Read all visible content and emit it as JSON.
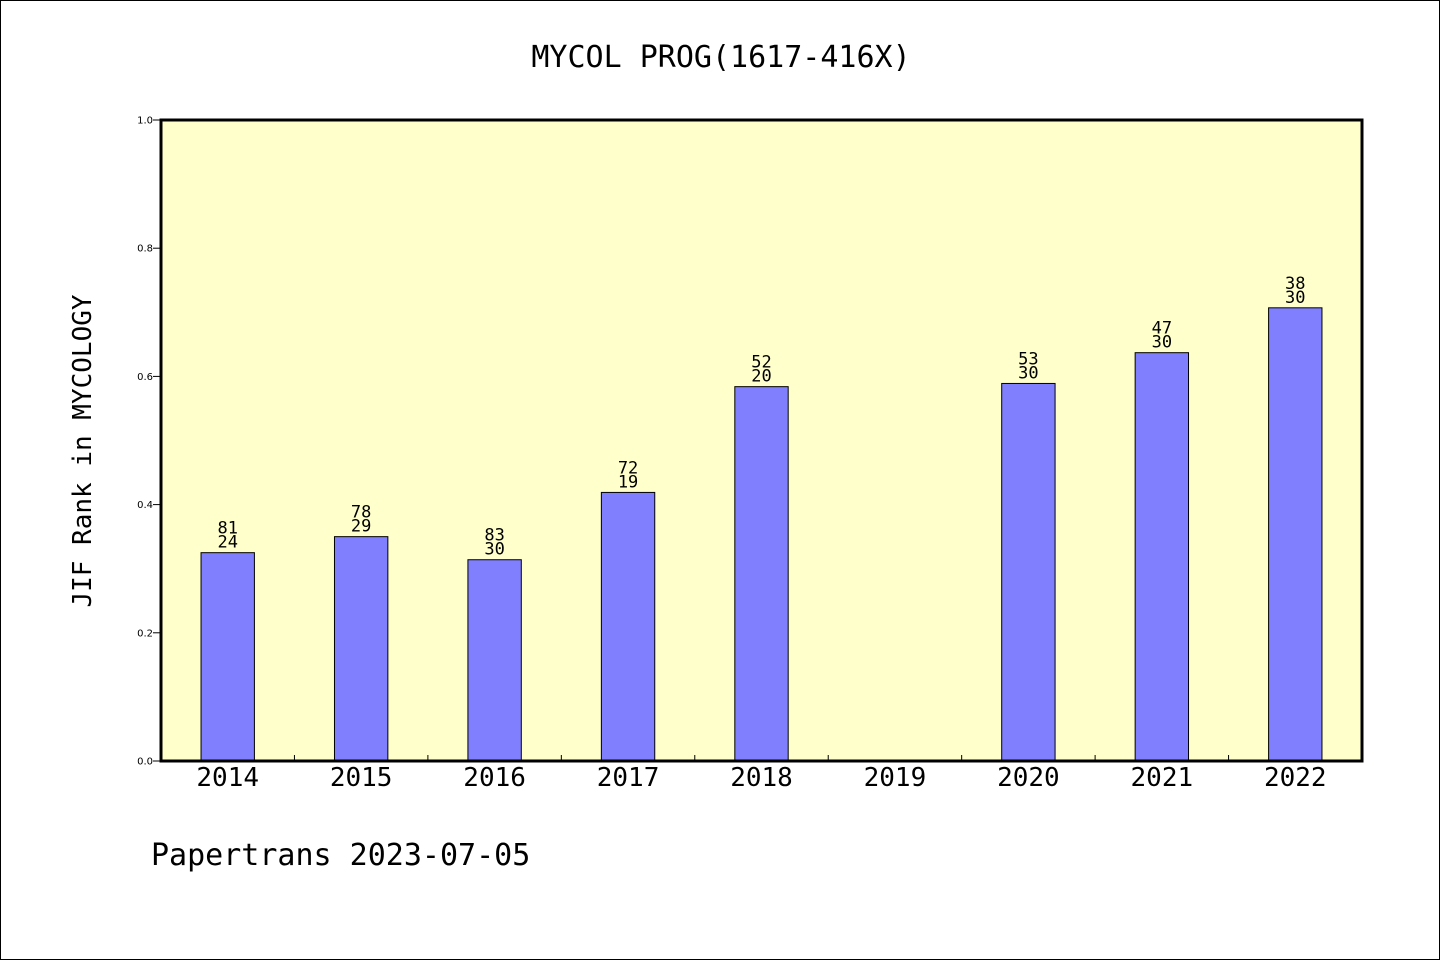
{
  "chart_data": {
    "type": "bar",
    "title": "MYCOL PROG(1617-416X)",
    "xlabel": "",
    "ylabel": "JIF Rank in MYCOLOGY",
    "ylim": [
      0,
      1
    ],
    "yticks": [
      "0.0",
      "0.2",
      "0.4",
      "0.6",
      "0.8",
      "1.0"
    ],
    "categories": [
      "2014",
      "2015",
      "2016",
      "2017",
      "2018",
      "2019",
      "2020",
      "2021",
      "2022"
    ],
    "values": [
      0.325,
      0.35,
      0.314,
      0.419,
      0.584,
      null,
      0.589,
      0.637,
      0.707
    ],
    "labels_top": [
      "81",
      "78",
      "83",
      "72",
      "52",
      "",
      "53",
      "47",
      "38"
    ],
    "labels_bottom": [
      "24",
      "29",
      "30",
      "19",
      "20",
      "",
      "30",
      "30",
      "30"
    ],
    "grid": false,
    "colors": {
      "plot_background": "#ffffcc",
      "bar_fill": "#8080ff",
      "bar_stroke": "#000000"
    }
  },
  "footer": {
    "note": "Papertrans 2023-07-05"
  }
}
